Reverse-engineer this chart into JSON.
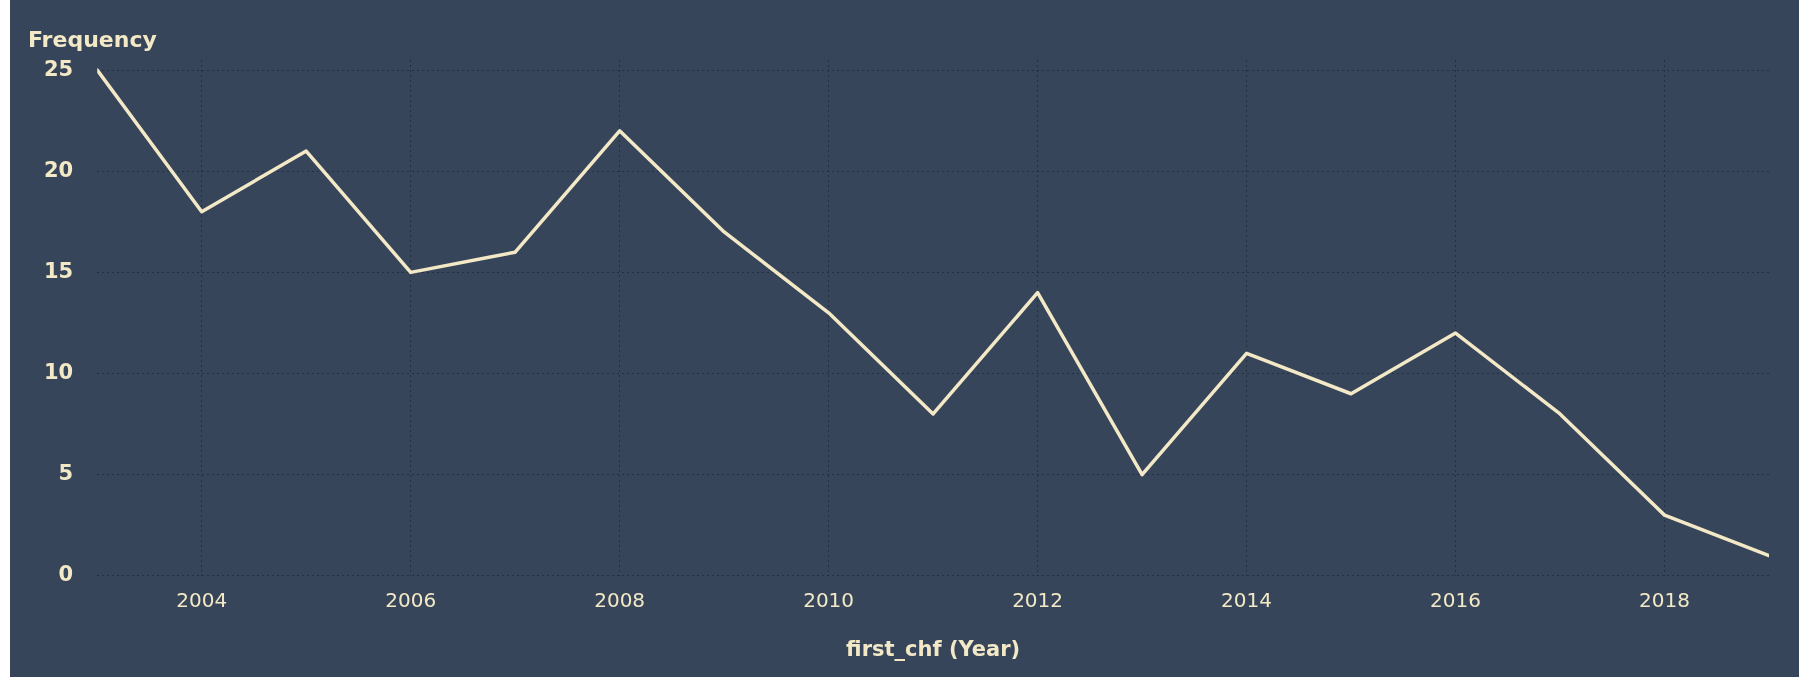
{
  "chart_data": {
    "type": "line",
    "xlabel": "first_chf (Year)",
    "ylabel": "Frequency",
    "x": [
      2003,
      2004,
      2005,
      2006,
      2007,
      2008,
      2009,
      2010,
      2011,
      2012,
      2013,
      2014,
      2015,
      2016,
      2017,
      2018,
      2019
    ],
    "series": [
      {
        "color": "#f3e9c6",
        "values": [
          25,
          18,
          21,
          15,
          16,
          22,
          17,
          13,
          8,
          14,
          5,
          11,
          9,
          12,
          8,
          3,
          1
        ]
      }
    ],
    "xlim": [
      2003,
      2019
    ],
    "xticks": [
      2004,
      2006,
      2008,
      2010,
      2012,
      2014,
      2016,
      2018
    ],
    "ylim": [
      0,
      25.5
    ],
    "yticks": [
      0,
      5,
      10,
      15,
      20,
      25
    ],
    "grid": true,
    "marker": "none",
    "line_style": "solid"
  }
}
